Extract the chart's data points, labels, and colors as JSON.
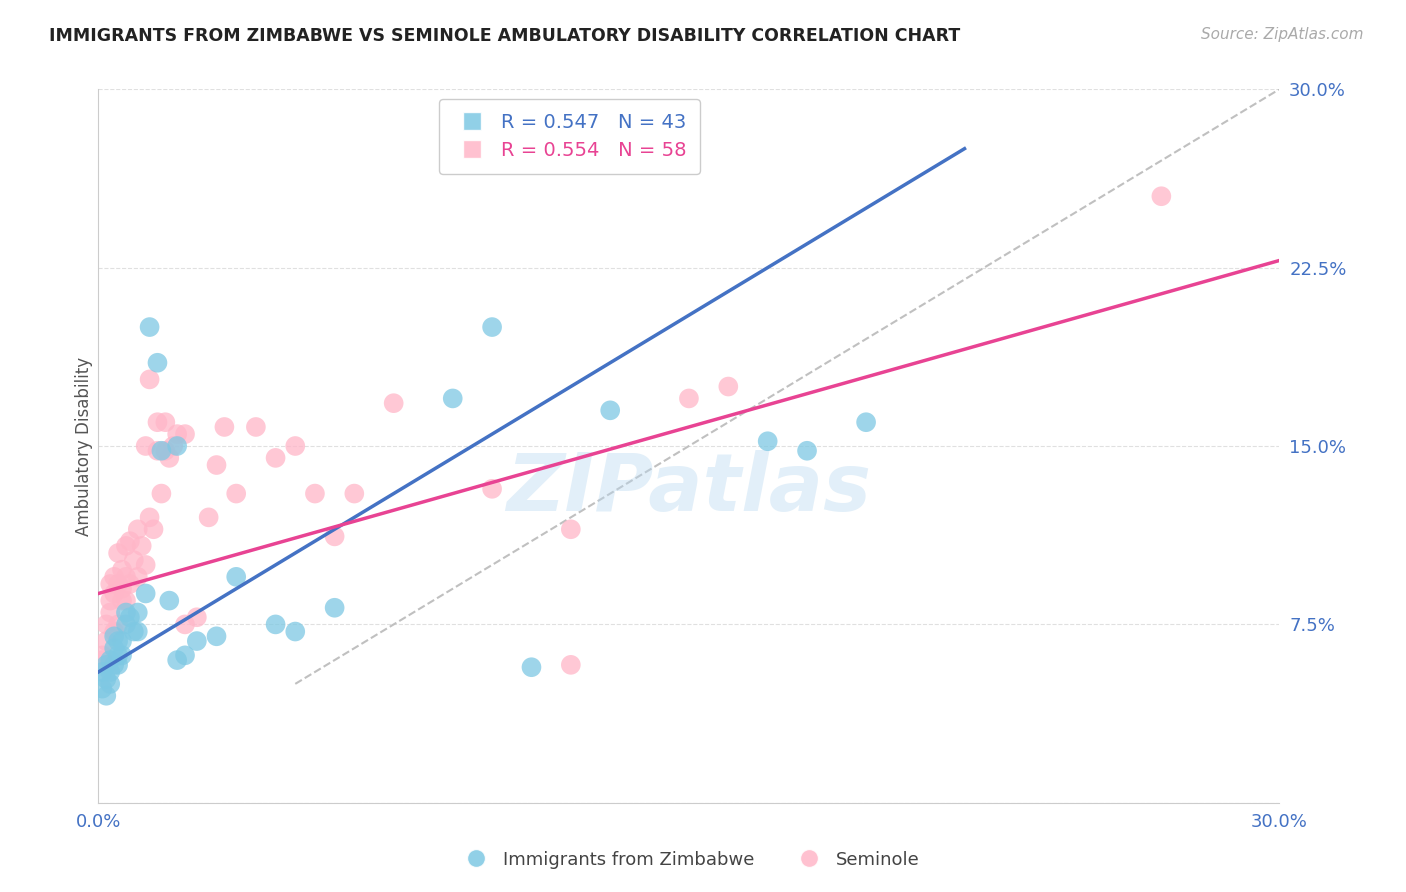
{
  "title": "IMMIGRANTS FROM ZIMBABWE VS SEMINOLE AMBULATORY DISABILITY CORRELATION CHART",
  "source": "Source: ZipAtlas.com",
  "ylabel": "Ambulatory Disability",
  "xmin": 0.0,
  "xmax": 0.3,
  "ymin": 0.0,
  "ymax": 0.3,
  "yticks": [
    0.0,
    0.075,
    0.15,
    0.225,
    0.3
  ],
  "ytick_labels": [
    "",
    "7.5%",
    "15.0%",
    "22.5%",
    "30.0%"
  ],
  "xticks": [
    0.0,
    0.05,
    0.1,
    0.15,
    0.2,
    0.25,
    0.3
  ],
  "xtick_labels": [
    "0.0%",
    "",
    "",
    "",
    "",
    "",
    "30.0%"
  ],
  "color_blue": "#7ec8e3",
  "color_pink": "#ffb6c8",
  "color_line_blue": "#4472c4",
  "color_line_pink": "#e84393",
  "color_diagonal": "#c0c0c0",
  "watermark": "ZIPatlas",
  "legend_R1": "R = 0.547",
  "legend_N1": "N = 43",
  "legend_R2": "R = 0.554",
  "legend_N2": "N = 58",
  "blue_points": [
    [
      0.001,
      0.055
    ],
    [
      0.001,
      0.048
    ],
    [
      0.002,
      0.052
    ],
    [
      0.002,
      0.045
    ],
    [
      0.002,
      0.058
    ],
    [
      0.003,
      0.055
    ],
    [
      0.003,
      0.06
    ],
    [
      0.003,
      0.05
    ],
    [
      0.004,
      0.058
    ],
    [
      0.004,
      0.065
    ],
    [
      0.004,
      0.07
    ],
    [
      0.005,
      0.058
    ],
    [
      0.005,
      0.068
    ],
    [
      0.005,
      0.062
    ],
    [
      0.006,
      0.062
    ],
    [
      0.006,
      0.068
    ],
    [
      0.007,
      0.075
    ],
    [
      0.007,
      0.08
    ],
    [
      0.008,
      0.078
    ],
    [
      0.009,
      0.072
    ],
    [
      0.01,
      0.072
    ],
    [
      0.01,
      0.08
    ],
    [
      0.012,
      0.088
    ],
    [
      0.013,
      0.2
    ],
    [
      0.015,
      0.185
    ],
    [
      0.016,
      0.148
    ],
    [
      0.018,
      0.085
    ],
    [
      0.02,
      0.15
    ],
    [
      0.02,
      0.06
    ],
    [
      0.022,
      0.062
    ],
    [
      0.025,
      0.068
    ],
    [
      0.03,
      0.07
    ],
    [
      0.035,
      0.095
    ],
    [
      0.045,
      0.075
    ],
    [
      0.05,
      0.072
    ],
    [
      0.06,
      0.082
    ],
    [
      0.09,
      0.17
    ],
    [
      0.1,
      0.2
    ],
    [
      0.11,
      0.057
    ],
    [
      0.13,
      0.165
    ],
    [
      0.17,
      0.152
    ],
    [
      0.18,
      0.148
    ],
    [
      0.195,
      0.16
    ]
  ],
  "pink_points": [
    [
      0.001,
      0.06
    ],
    [
      0.001,
      0.062
    ],
    [
      0.002,
      0.075
    ],
    [
      0.002,
      0.068
    ],
    [
      0.003,
      0.08
    ],
    [
      0.003,
      0.085
    ],
    [
      0.003,
      0.092
    ],
    [
      0.004,
      0.072
    ],
    [
      0.004,
      0.088
    ],
    [
      0.004,
      0.095
    ],
    [
      0.005,
      0.075
    ],
    [
      0.005,
      0.092
    ],
    [
      0.005,
      0.105
    ],
    [
      0.006,
      0.085
    ],
    [
      0.006,
      0.09
    ],
    [
      0.006,
      0.098
    ],
    [
      0.007,
      0.085
    ],
    [
      0.007,
      0.095
    ],
    [
      0.007,
      0.108
    ],
    [
      0.008,
      0.092
    ],
    [
      0.008,
      0.11
    ],
    [
      0.009,
      0.102
    ],
    [
      0.01,
      0.095
    ],
    [
      0.01,
      0.115
    ],
    [
      0.011,
      0.108
    ],
    [
      0.012,
      0.1
    ],
    [
      0.012,
      0.15
    ],
    [
      0.013,
      0.12
    ],
    [
      0.013,
      0.178
    ],
    [
      0.014,
      0.115
    ],
    [
      0.015,
      0.148
    ],
    [
      0.015,
      0.16
    ],
    [
      0.016,
      0.13
    ],
    [
      0.017,
      0.148
    ],
    [
      0.017,
      0.16
    ],
    [
      0.018,
      0.145
    ],
    [
      0.019,
      0.15
    ],
    [
      0.02,
      0.155
    ],
    [
      0.022,
      0.155
    ],
    [
      0.022,
      0.075
    ],
    [
      0.025,
      0.078
    ],
    [
      0.028,
      0.12
    ],
    [
      0.03,
      0.142
    ],
    [
      0.032,
      0.158
    ],
    [
      0.035,
      0.13
    ],
    [
      0.04,
      0.158
    ],
    [
      0.045,
      0.145
    ],
    [
      0.05,
      0.15
    ],
    [
      0.055,
      0.13
    ],
    [
      0.06,
      0.112
    ],
    [
      0.065,
      0.13
    ],
    [
      0.075,
      0.168
    ],
    [
      0.1,
      0.132
    ],
    [
      0.12,
      0.115
    ],
    [
      0.15,
      0.17
    ],
    [
      0.16,
      0.175
    ],
    [
      0.12,
      0.058
    ],
    [
      0.27,
      0.255
    ]
  ],
  "blue_line_x": [
    0.0,
    0.22
  ],
  "blue_line_y": [
    0.055,
    0.275
  ],
  "pink_line_x": [
    0.0,
    0.3
  ],
  "pink_line_y": [
    0.088,
    0.228
  ],
  "diagonal_line": [
    [
      0.05,
      0.05
    ],
    [
      0.3,
      0.3
    ]
  ],
  "background_color": "#ffffff",
  "grid_color": "#e0e0e0"
}
